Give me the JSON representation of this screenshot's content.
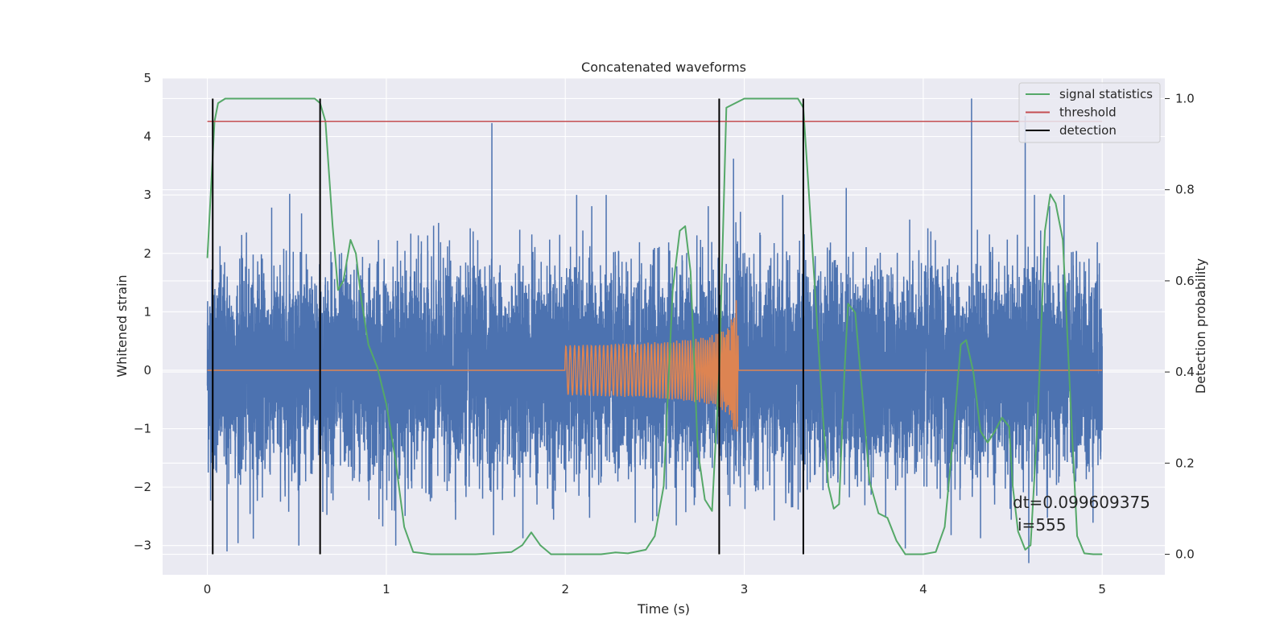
{
  "chart_data": {
    "type": "line",
    "title": "Concatenated waveforms",
    "xlabel": "Time (s)",
    "ylabel": "Whitened strain",
    "y2label": "Detection probability",
    "xlim": [
      -0.25,
      5.35
    ],
    "ylim": [
      -3.5,
      5.0
    ],
    "y2lim": [
      -0.045,
      1.045
    ],
    "xticks": [
      0,
      1,
      2,
      3,
      4,
      5
    ],
    "xtick_labels": [
      "0",
      "1",
      "2",
      "3",
      "4",
      "5"
    ],
    "yticks": [
      -3,
      -2,
      -1,
      0,
      1,
      2,
      3,
      4,
      5
    ],
    "ytick_labels": [
      "−3",
      "−2",
      "−1",
      "0",
      "1",
      "2",
      "3",
      "4",
      "5"
    ],
    "y2ticks": [
      0.0,
      0.2,
      0.4,
      0.6,
      0.8,
      1.0
    ],
    "y2tick_labels": [
      "0.0",
      "0.2",
      "0.4",
      "0.6",
      "0.8",
      "1.0"
    ],
    "grid": true,
    "legend_position": "top-right",
    "series": [
      {
        "name": "",
        "role": "strain noise (left axis)",
        "color": "#4c72b0",
        "x_range": [
          0,
          5
        ],
        "sampling_hz": 2048,
        "noise_std": 0.85,
        "peaks": [
          {
            "x": 1.59,
            "y": 4.23
          },
          {
            "x": 4.27,
            "y": 4.65
          },
          {
            "x": 4.57,
            "y": 4.35
          },
          {
            "x": 2.94,
            "y": 3.62
          },
          {
            "x": 0.46,
            "y": 3.02
          },
          {
            "x": 3.57,
            "y": 3.12
          },
          {
            "x": 4.59,
            "y": -3.3
          },
          {
            "x": 0.11,
            "y": -3.1
          },
          {
            "x": 3.9,
            "y": -3.05
          }
        ]
      },
      {
        "name": "",
        "role": "chirp waveform (left axis)",
        "color": "#dd8452",
        "x_range": [
          0,
          5
        ],
        "chirp_start": 2.0,
        "chirp_merger": 2.95,
        "amplitude_start": 0.25,
        "amplitude_peak": 1.2
      },
      {
        "name": "signal statistics",
        "axis": "right",
        "color": "#55a868",
        "x": [
          0.0,
          0.02,
          0.04,
          0.06,
          0.1,
          0.2,
          0.4,
          0.55,
          0.6,
          0.63,
          0.66,
          0.7,
          0.73,
          0.76,
          0.8,
          0.83,
          0.86,
          0.9,
          0.95,
          1.0,
          1.05,
          1.1,
          1.15,
          1.25,
          1.5,
          1.7,
          1.76,
          1.81,
          1.86,
          1.92,
          2.0,
          2.2,
          2.28,
          2.35,
          2.45,
          2.5,
          2.55,
          2.6,
          2.64,
          2.67,
          2.7,
          2.74,
          2.78,
          2.82,
          2.86,
          2.9,
          3.0,
          3.2,
          3.3,
          3.33,
          3.36,
          3.4,
          3.44,
          3.47,
          3.5,
          3.53,
          3.56,
          3.58,
          3.62,
          3.66,
          3.7,
          3.75,
          3.8,
          3.85,
          3.9,
          4.0,
          4.07,
          4.12,
          4.17,
          4.21,
          4.24,
          4.28,
          4.32,
          4.36,
          4.4,
          4.44,
          4.48,
          4.5,
          4.53,
          4.57,
          4.6,
          4.64,
          4.68,
          4.71,
          4.74,
          4.78,
          4.82,
          4.86,
          4.9,
          4.95,
          5.0
        ],
        "y": [
          0.65,
          0.8,
          0.95,
          0.99,
          1.0,
          1.0,
          1.0,
          1.0,
          1.0,
          0.99,
          0.95,
          0.72,
          0.58,
          0.6,
          0.69,
          0.66,
          0.56,
          0.46,
          0.41,
          0.33,
          0.21,
          0.06,
          0.005,
          0.0,
          0.0,
          0.005,
          0.02,
          0.048,
          0.02,
          0.0,
          0.0,
          0.0,
          0.004,
          0.002,
          0.01,
          0.04,
          0.15,
          0.58,
          0.71,
          0.72,
          0.62,
          0.23,
          0.12,
          0.095,
          0.4,
          0.98,
          1.0,
          1.0,
          1.0,
          0.98,
          0.8,
          0.55,
          0.3,
          0.15,
          0.1,
          0.11,
          0.4,
          0.55,
          0.53,
          0.35,
          0.16,
          0.09,
          0.08,
          0.03,
          0.0,
          0.0,
          0.005,
          0.06,
          0.27,
          0.46,
          0.47,
          0.4,
          0.27,
          0.245,
          0.27,
          0.3,
          0.28,
          0.15,
          0.05,
          0.01,
          0.02,
          0.3,
          0.71,
          0.79,
          0.77,
          0.69,
          0.36,
          0.04,
          0.002,
          0.0,
          0.0
        ]
      },
      {
        "name": "threshold",
        "axis": "right",
        "color": "#c44e52",
        "x": [
          0,
          5
        ],
        "y": [
          0.95,
          0.95
        ]
      },
      {
        "name": "detection",
        "axis": "right",
        "color": "#000000",
        "vlines": [
          0.03,
          0.63,
          2.86,
          3.33
        ],
        "ymin": 0.0,
        "ymax": 1.0
      }
    ],
    "annotations": [
      "dt=0.099609375",
      "i=555"
    ]
  }
}
